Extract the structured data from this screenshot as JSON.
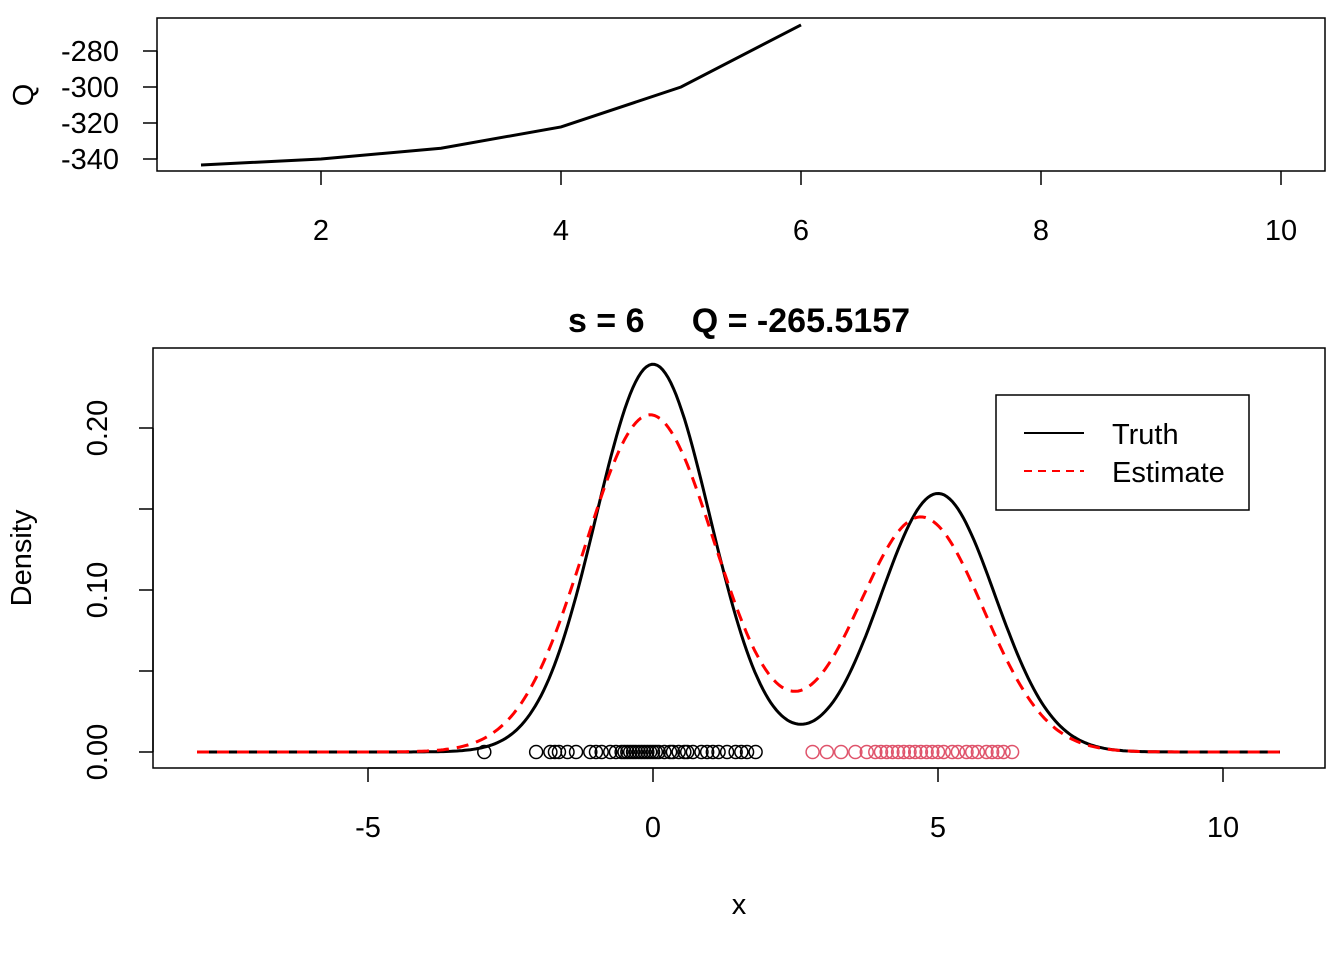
{
  "chart_data": [
    {
      "type": "line",
      "title": "",
      "xlabel": "",
      "ylabel": "Q",
      "x": [
        1,
        2,
        3,
        4,
        5,
        6
      ],
      "values": [
        -343.3,
        -340,
        -334,
        -322.2,
        -300,
        -265.5157
      ],
      "xlim": [
        0.64,
        10.36
      ],
      "ylim": [
        -344,
        -262
      ],
      "xticks": [
        2,
        4,
        6,
        8,
        10
      ],
      "xtick_labels": [
        "2",
        "4",
        "6",
        "8",
        "10"
      ],
      "yticks": [
        -280,
        -300,
        -320,
        -340
      ],
      "ytick_labels": [
        "-280",
        "-300",
        "-320",
        "-340"
      ],
      "grid": false
    },
    {
      "type": "line",
      "title": "s = 6     Q = -265.5157",
      "xlabel": "x",
      "ylabel": "Density",
      "xlim": [
        -8.76,
        11.8
      ],
      "ylim": [
        -0.01,
        0.25
      ],
      "xticks": [
        -5,
        0,
        5,
        10
      ],
      "xtick_labels": [
        "-5",
        "0",
        "5",
        "10"
      ],
      "yticks": [
        0,
        0.05,
        0.1,
        0.15,
        0.2
      ],
      "ytick_labels": [
        "0.00",
        "",
        "0.10",
        "",
        "0.20"
      ],
      "grid": false,
      "legend": {
        "position": "top-right",
        "entries": [
          "Truth",
          "Estimate"
        ]
      },
      "series": [
        {
          "name": "Truth",
          "color": "#000000",
          "style": "solid",
          "x_range": [
            -8,
            11
          ],
          "components": [
            {
              "weight": 0.6,
              "mean": 0,
              "sd": 1
            },
            {
              "weight": 0.4,
              "mean": 5,
              "sd": 1
            }
          ]
        },
        {
          "name": "Estimate",
          "color": "#FF0000",
          "style": "dashed",
          "x_range": [
            -8,
            11
          ],
          "components": [
            {
              "weight": 0.6,
              "mean": -0.05,
              "sd": 1.15
            },
            {
              "weight": 0.4,
              "mean": 4.7,
              "sd": 1.1
            }
          ]
        }
      ],
      "rug": [
        {
          "group": 1,
          "color": "#000000",
          "x": [
            -2.96,
            -2.05,
            -1.8,
            -1.72,
            -1.65,
            -1.5,
            -1.35,
            -1.1,
            -1.0,
            -0.9,
            -0.75,
            -0.65,
            -0.55,
            -0.5,
            -0.45,
            -0.4,
            -0.35,
            -0.3,
            -0.25,
            -0.2,
            -0.15,
            -0.1,
            -0.05,
            0.0,
            0.05,
            0.1,
            0.2,
            0.3,
            0.35,
            0.45,
            0.55,
            0.6,
            0.7,
            0.85,
            0.95,
            1.05,
            1.15,
            1.3,
            1.45,
            1.55,
            1.65,
            1.8
          ]
        },
        {
          "group": 2,
          "color": "#DF536B",
          "x": [
            2.8,
            3.05,
            3.3,
            3.55,
            3.75,
            3.9,
            4.0,
            4.1,
            4.2,
            4.3,
            4.4,
            4.5,
            4.6,
            4.7,
            4.8,
            4.9,
            5.0,
            5.1,
            5.25,
            5.35,
            5.5,
            5.6,
            5.7,
            5.85,
            5.95,
            6.05,
            6.15,
            6.3
          ]
        }
      ]
    }
  ]
}
